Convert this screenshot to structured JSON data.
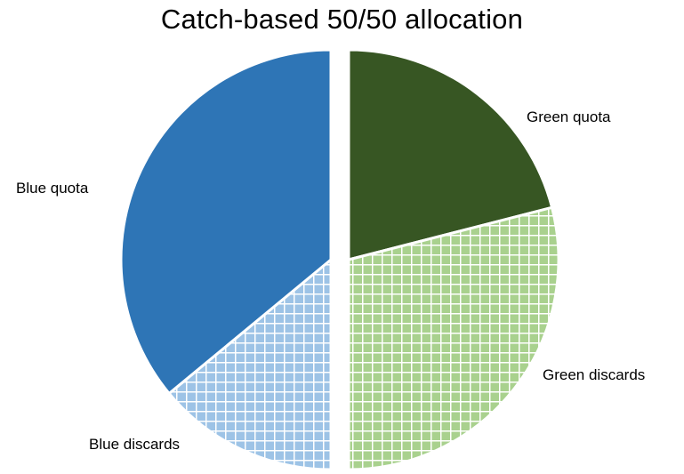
{
  "chart_data": {
    "type": "pie",
    "title": "Catch-based 50/50 allocation",
    "slices": [
      {
        "label": "Green quota",
        "value": 21,
        "color": "#375623",
        "pattern": "solid"
      },
      {
        "label": "Green discards",
        "value": 29,
        "color": "#a9d18e",
        "pattern": "grid"
      },
      {
        "label": "Blue discards",
        "value": 14,
        "color": "#9dc3e6",
        "pattern": "grid"
      },
      {
        "label": "Blue quota",
        "value": 36,
        "color": "#2e75b6",
        "pattern": "solid"
      }
    ],
    "halves": [
      {
        "name": "Green",
        "slices": [
          "Green quota",
          "Green discards"
        ],
        "separated": true
      },
      {
        "name": "Blue",
        "slices": [
          "Blue discards",
          "Blue quota"
        ],
        "separated": true
      }
    ],
    "start": "12 o'clock, clockwise",
    "legend": "none (labels beside slices)"
  }
}
